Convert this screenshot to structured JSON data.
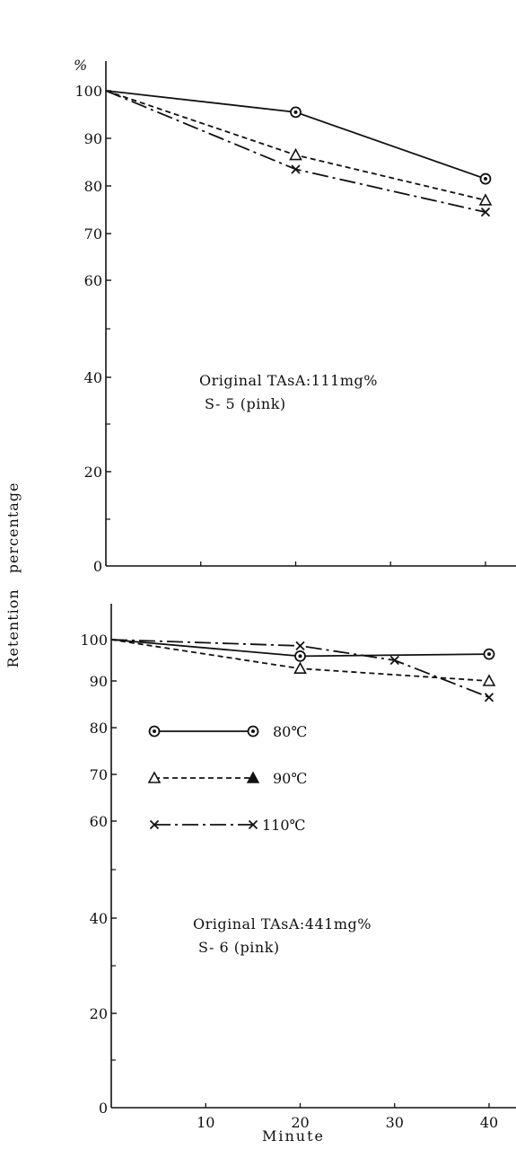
{
  "chart_data": [
    {
      "type": "line",
      "panel": "top",
      "x_range": [
        0,
        40
      ],
      "y_range": [
        0,
        100
      ],
      "y_ticks": [
        "0",
        "20",
        "40",
        "60",
        "70",
        "80",
        "90",
        "100"
      ],
      "y_unit": "%",
      "annotation": [
        "Original TAsA:111mg%",
        "S- 5 (pink)"
      ],
      "series": [
        {
          "marker": "circle-dot",
          "style": "solid",
          "x": [
            0,
            20,
            40
          ],
          "y": [
            100,
            95.5,
            81.5
          ]
        },
        {
          "marker": "triangle",
          "style": "dashed",
          "x": [
            0,
            20,
            40
          ],
          "y": [
            100,
            86.5,
            77
          ]
        },
        {
          "marker": "x",
          "style": "dashdot",
          "x": [
            0,
            20,
            40
          ],
          "y": [
            100,
            83.5,
            74.5
          ]
        }
      ]
    },
    {
      "type": "line",
      "panel": "bottom",
      "x_range": [
        0,
        40
      ],
      "y_range": [
        0,
        100
      ],
      "y_ticks": [
        "0",
        "20",
        "40",
        "60",
        "70",
        "80",
        "90",
        "100"
      ],
      "x_ticks": [
        "10",
        "20",
        "30",
        "40"
      ],
      "annotation": [
        "Original TAsA:441mg%",
        "S- 6 (pink)"
      ],
      "legend": [
        "80℃",
        "90℃",
        "110℃"
      ],
      "series": [
        {
          "name": "80℃",
          "marker": "circle-dot",
          "style": "solid",
          "x": [
            0,
            20,
            40
          ],
          "y": [
            100,
            96,
            96.5
          ]
        },
        {
          "name": "90℃",
          "marker": "triangle",
          "style": "dashed",
          "x": [
            0,
            20,
            40
          ],
          "y": [
            100,
            93,
            90
          ]
        },
        {
          "name": "110℃",
          "marker": "x",
          "style": "dashdot",
          "x": [
            0,
            20,
            30,
            40
          ],
          "y": [
            100,
            98.5,
            95,
            86.5
          ]
        }
      ]
    }
  ],
  "axes": {
    "ylabel": "Retention　percentage",
    "xlabel": "Minute"
  }
}
